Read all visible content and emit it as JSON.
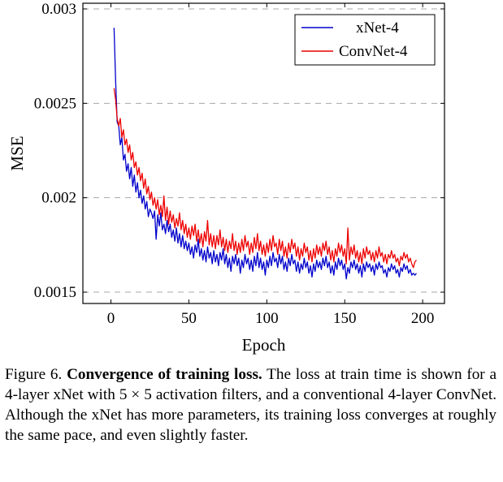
{
  "chart_data": {
    "type": "line",
    "xlabel": "Epoch",
    "ylabel": "MSE",
    "xlim": [
      -18,
      214
    ],
    "ylim": [
      0.00144,
      0.00303
    ],
    "xticks": [
      0,
      50,
      100,
      150,
      200
    ],
    "yticks": [
      0.0015,
      0.002,
      0.0025,
      0.003
    ],
    "ytick_labels": [
      "0.0015",
      "0.002",
      "0.0025",
      "0.003"
    ],
    "grid": "horizontal-dashed",
    "legend_position": "top-right",
    "series": [
      {
        "name": "xNet-4",
        "color": "#0000cc",
        "x_start": 2,
        "x_step": 1,
        "values": [
          0.0029,
          0.00262,
          0.0024,
          0.00238,
          0.00228,
          0.00232,
          0.0022,
          0.00223,
          0.00214,
          0.00218,
          0.0021,
          0.00216,
          0.00206,
          0.00212,
          0.00203,
          0.00208,
          0.002,
          0.00204,
          0.00197,
          0.00201,
          0.00194,
          0.00198,
          0.0019,
          0.00194,
          0.00192,
          0.00189,
          0.00193,
          0.00178,
          0.00191,
          0.00185,
          0.00192,
          0.00183,
          0.00186,
          0.00181,
          0.00188,
          0.00182,
          0.00186,
          0.00179,
          0.00183,
          0.00177,
          0.00184,
          0.00176,
          0.00181,
          0.00174,
          0.0018,
          0.00173,
          0.00177,
          0.00172,
          0.00176,
          0.0017,
          0.00174,
          0.00168,
          0.00175,
          0.00171,
          0.00178,
          0.00169,
          0.00173,
          0.00167,
          0.00172,
          0.00166,
          0.00174,
          0.00168,
          0.00171,
          0.00165,
          0.00172,
          0.00166,
          0.0017,
          0.00164,
          0.00171,
          0.00167,
          0.00173,
          0.00165,
          0.0017,
          0.00163,
          0.00168,
          0.00161,
          0.00169,
          0.00165,
          0.0017,
          0.00164,
          0.00168,
          0.0016,
          0.00167,
          0.00163,
          0.0017,
          0.00165,
          0.00168,
          0.00162,
          0.00167,
          0.00161,
          0.00169,
          0.00164,
          0.00171,
          0.00163,
          0.00168,
          0.00162,
          0.00166,
          0.00159,
          0.00167,
          0.00163,
          0.00169,
          0.00164,
          0.00171,
          0.00166,
          0.00168,
          0.00163,
          0.0017,
          0.00165,
          0.00169,
          0.00162,
          0.00166,
          0.00161,
          0.00168,
          0.00164,
          0.0017,
          0.00165,
          0.00167,
          0.00161,
          0.00166,
          0.0016,
          0.00165,
          0.00162,
          0.00168,
          0.00163,
          0.00166,
          0.0016,
          0.00164,
          0.00158,
          0.00165,
          0.00161,
          0.00167,
          0.00163,
          0.00166,
          0.00162,
          0.00168,
          0.00164,
          0.00169,
          0.00163,
          0.00166,
          0.0016,
          0.00164,
          0.00159,
          0.00166,
          0.00162,
          0.00168,
          0.00164,
          0.00167,
          0.00162,
          0.00165,
          0.00157,
          0.00163,
          0.0016,
          0.00166,
          0.00163,
          0.00167,
          0.00162,
          0.00165,
          0.0016,
          0.00164,
          0.00158,
          0.00165,
          0.00161,
          0.00166,
          0.00163,
          0.00165,
          0.00161,
          0.00164,
          0.00159,
          0.00165,
          0.00162,
          0.00166,
          0.00163,
          0.00164,
          0.0016,
          0.00162,
          0.00158,
          0.00163,
          0.00161,
          0.00165,
          0.00162,
          0.00164,
          0.0016,
          0.00162,
          0.00158,
          0.00163,
          0.00161,
          0.00165,
          0.00162,
          0.00164,
          0.0016,
          0.00162,
          0.00159,
          0.0016,
          0.00159,
          0.0016
        ]
      },
      {
        "name": "ConvNet-4",
        "color": "#ee0000",
        "x_start": 2,
        "x_step": 1,
        "values": [
          0.00258,
          0.00252,
          0.00242,
          0.00238,
          0.00242,
          0.00232,
          0.00236,
          0.00228,
          0.00231,
          0.00224,
          0.00228,
          0.0022,
          0.00224,
          0.00216,
          0.00219,
          0.00212,
          0.00216,
          0.00209,
          0.00213,
          0.00205,
          0.0021,
          0.00202,
          0.00206,
          0.00199,
          0.00203,
          0.00196,
          0.002,
          0.00194,
          0.00199,
          0.00191,
          0.00196,
          0.0019,
          0.00201,
          0.00188,
          0.00195,
          0.00186,
          0.00193,
          0.00187,
          0.00191,
          0.00184,
          0.00189,
          0.00185,
          0.00192,
          0.00183,
          0.00188,
          0.00181,
          0.00186,
          0.00179,
          0.00184,
          0.00178,
          0.00185,
          0.0018,
          0.00186,
          0.00177,
          0.00183,
          0.00176,
          0.00181,
          0.00174,
          0.00182,
          0.00177,
          0.00188,
          0.00175,
          0.00181,
          0.00174,
          0.0018,
          0.00173,
          0.0018,
          0.00175,
          0.00183,
          0.00174,
          0.00179,
          0.00172,
          0.00178,
          0.00171,
          0.00177,
          0.00173,
          0.00181,
          0.00172,
          0.00177,
          0.0017,
          0.00176,
          0.00171,
          0.00178,
          0.00172,
          0.0018,
          0.00174,
          0.00177,
          0.0017,
          0.00176,
          0.00171,
          0.00179,
          0.00173,
          0.00181,
          0.00172,
          0.00177,
          0.0017,
          0.00175,
          0.00169,
          0.00176,
          0.00171,
          0.00178,
          0.00172,
          0.0018,
          0.00174,
          0.00176,
          0.0017,
          0.00178,
          0.00172,
          0.00177,
          0.00169,
          0.00174,
          0.00168,
          0.00176,
          0.00171,
          0.00178,
          0.00173,
          0.00176,
          0.00169,
          0.00174,
          0.00167,
          0.00173,
          0.00169,
          0.00176,
          0.00171,
          0.00174,
          0.00167,
          0.00172,
          0.00166,
          0.00173,
          0.00168,
          0.00175,
          0.0017,
          0.00174,
          0.00169,
          0.00176,
          0.00172,
          0.00177,
          0.0017,
          0.00174,
          0.00167,
          0.00172,
          0.00166,
          0.00173,
          0.00169,
          0.00176,
          0.00171,
          0.00175,
          0.00169,
          0.00173,
          0.00165,
          0.00184,
          0.00167,
          0.00174,
          0.0017,
          0.00175,
          0.00168,
          0.00172,
          0.00166,
          0.00171,
          0.00165,
          0.00173,
          0.00168,
          0.00174,
          0.0017,
          0.00172,
          0.00167,
          0.00171,
          0.00166,
          0.00172,
          0.00168,
          0.00174,
          0.00169,
          0.00171,
          0.00166,
          0.0017,
          0.00165,
          0.0017,
          0.00168,
          0.00172,
          0.00168,
          0.0017,
          0.00166,
          0.00168,
          0.00164,
          0.00169,
          0.00167,
          0.00171,
          0.00168,
          0.0017,
          0.00166,
          0.00168,
          0.00165,
          0.00163,
          0.00166,
          0.00167
        ]
      }
    ]
  },
  "caption": {
    "label": "Figure 6.",
    "title": "Convergence of training loss.",
    "text": "The loss at train time is shown for a 4-layer xNet with 5 × 5 activation filters, and a conventional 4-layer ConvNet. Although the xNet has more parameters, its training loss converges at roughly the same pace, and even slightly faster."
  }
}
